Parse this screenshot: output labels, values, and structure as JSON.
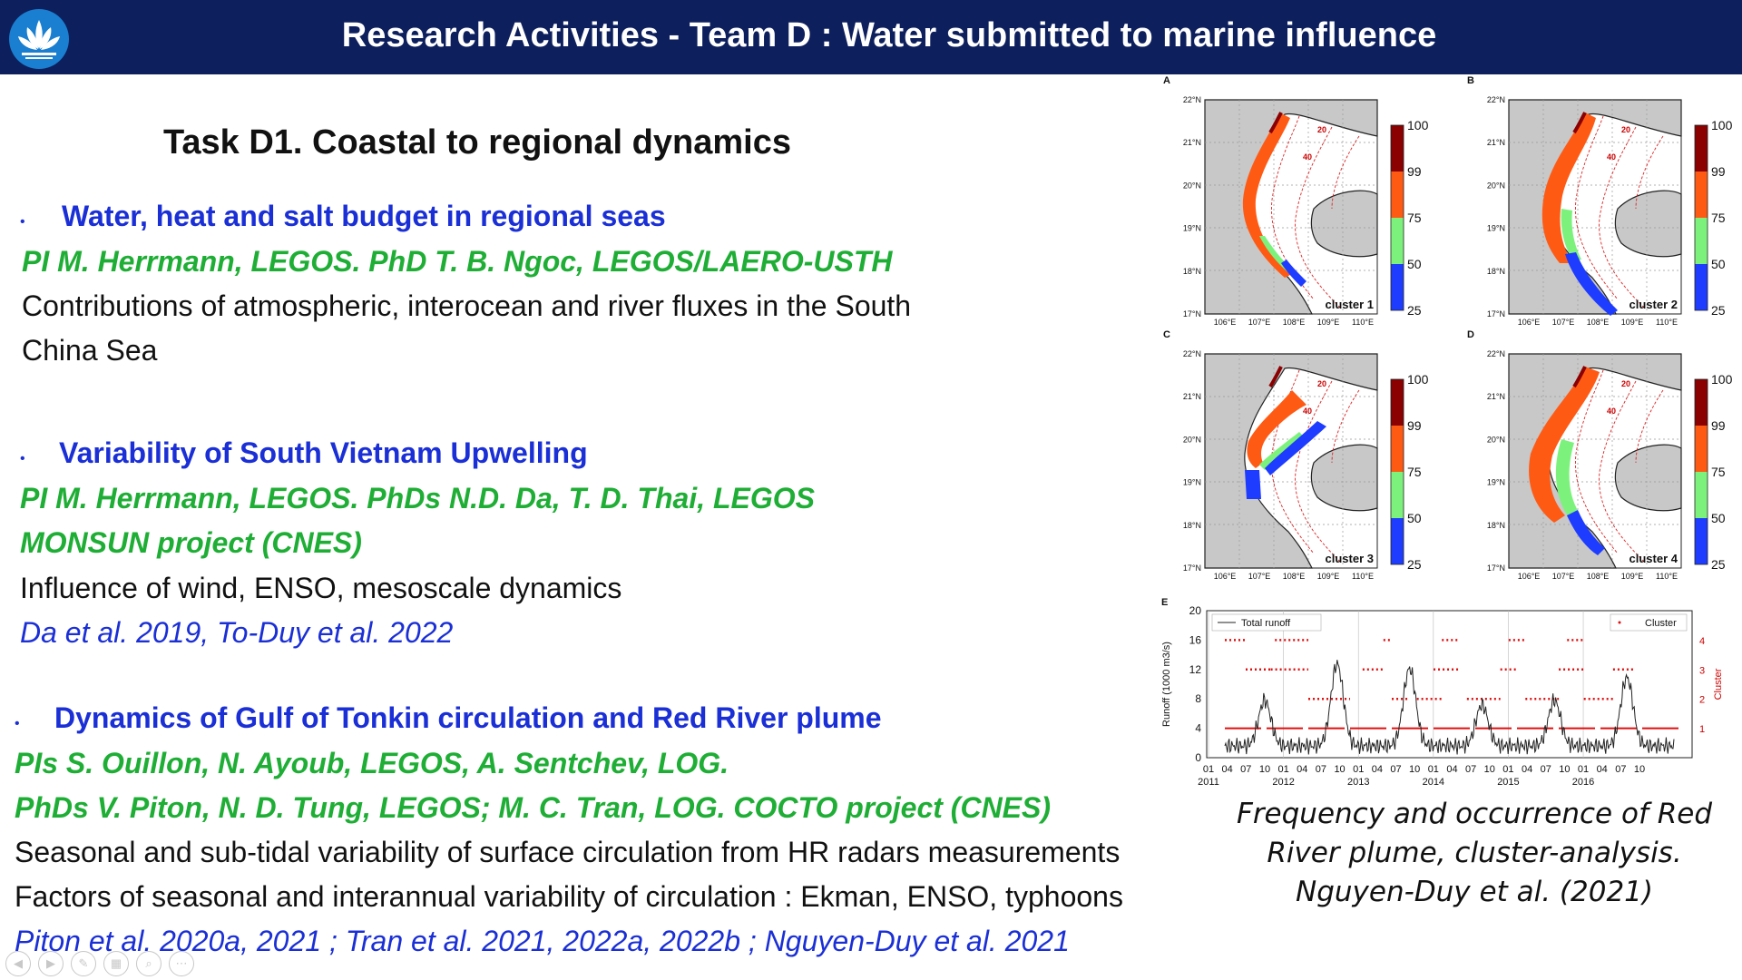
{
  "header": {
    "title": "Research Activities - Team D : Water submitted to marine influence"
  },
  "task": {
    "title": "Task D1. Coastal to regional dynamics"
  },
  "sections": [
    {
      "heading": "Water, heat and salt budget in regional seas",
      "pi_lines": [
        "PI M. Herrmann, LEGOS. PhD T. B. Ngoc, LEGOS/LAERO-USTH"
      ],
      "desc_lines": [
        "Contributions of atmospheric, interocean and river fluxes in the South",
        "China Sea"
      ],
      "refs": []
    },
    {
      "heading": "Variability of South Vietnam Upwelling",
      "pi_lines": [
        "PI M. Herrmann, LEGOS. PhDs N.D. Da, T. D. Thai, LEGOS",
        "MONSUN project (CNES)"
      ],
      "desc_lines": [
        "Influence of wind, ENSO, mesoscale dynamics"
      ],
      "refs": [
        "Da et al. 2019, To-Duy et al. 2022"
      ]
    },
    {
      "heading": "Dynamics of Gulf of Tonkin circulation and Red River plume",
      "pi_lines": [
        "PIs S. Ouillon, N. Ayoub, LEGOS, A. Sentchev, LOG.",
        "PhDs V. Piton, N. D. Tung, LEGOS; M. C. Tran, LOG. COCTO project (CNES)"
      ],
      "desc_lines": [
        "Seasonal and sub-tidal variability of surface circulation from HR radars measurements",
        "Factors of seasonal and interannual variability of circulation : Ekman, ENSO, typhoons"
      ],
      "refs": [
        "Piton et al. 2020a, 2021 ; Tran et al. 2021, 2022a, 2022b ; Nguyen-Duy et al. 2021"
      ]
    }
  ],
  "figure": {
    "maps": [
      {
        "letter": "A",
        "cluster": "cluster 1"
      },
      {
        "letter": "B",
        "cluster": "cluster 2"
      },
      {
        "letter": "C",
        "cluster": "cluster 3"
      },
      {
        "letter": "D",
        "cluster": "cluster 4"
      }
    ],
    "lat_labels": [
      "22°N",
      "21°N",
      "20°N",
      "19°N",
      "18°N",
      "17°N"
    ],
    "lon_labels": [
      "106°E",
      "107°E",
      "108°E",
      "109°E",
      "110°E"
    ],
    "contour_labels": [
      "20",
      "40"
    ],
    "colorbar_labels": [
      "100",
      "99",
      "75",
      "50",
      "25"
    ],
    "colorbar_colors": [
      "#8b0000",
      "#ff5a14",
      "#7cf27c",
      "#1e3cff"
    ],
    "timeseries": {
      "letter": "E",
      "ylabel": "Runoff (1000 m3/s)",
      "y2label": "Cluster",
      "yticks": [
        "0",
        "4",
        "8",
        "12",
        "16",
        "20"
      ],
      "y2ticks": [
        "1",
        "2",
        "3",
        "4"
      ],
      "legend_left": "Total runoff",
      "legend_right": "Cluster",
      "month_ticks": [
        "01",
        "04",
        "07",
        "10",
        "01",
        "04",
        "07",
        "10",
        "01",
        "04",
        "07",
        "10",
        "01",
        "04",
        "07",
        "10",
        "01",
        "04",
        "07",
        "10",
        "01",
        "04",
        "07",
        "10"
      ],
      "year_labels": [
        "2011",
        "2012",
        "2013",
        "2014",
        "2015",
        "2016"
      ]
    },
    "caption_lines": [
      "Frequency and occurrence of Red",
      "River  plume, cluster-analysis.",
      "Nguyen-Duy et al. (2021)"
    ]
  }
}
